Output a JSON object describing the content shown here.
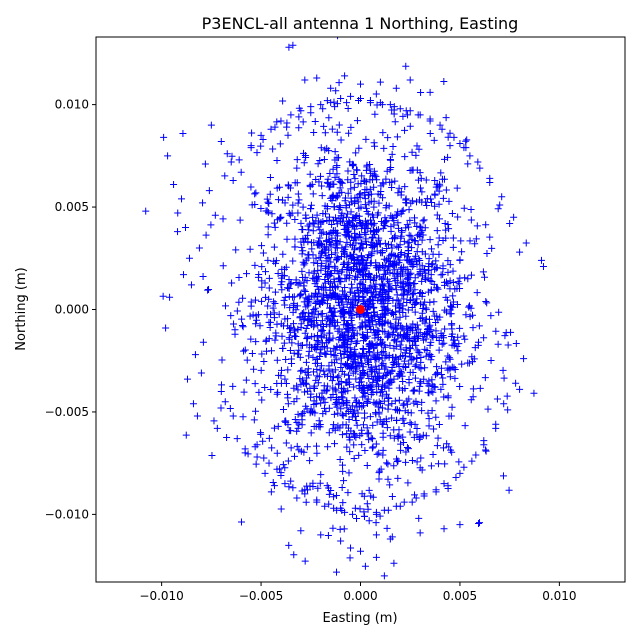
{
  "chart_data": {
    "type": "scatter",
    "title": "P3ENCL-all antenna 1 Northing, Easting",
    "xlabel": "Easting (m)",
    "ylabel": "Northing (m)",
    "xlim": [
      -0.0133,
      0.0133
    ],
    "ylim": [
      -0.0133,
      0.0133
    ],
    "xticks": [
      {
        "value": -0.01,
        "label": "−0.010"
      },
      {
        "value": -0.005,
        "label": "−0.005"
      },
      {
        "value": 0.0,
        "label": "0.000"
      },
      {
        "value": 0.005,
        "label": "0.005"
      },
      {
        "value": 0.01,
        "label": "0.010"
      }
    ],
    "yticks": [
      {
        "value": -0.01,
        "label": "−0.010"
      },
      {
        "value": -0.005,
        "label": "−0.005"
      },
      {
        "value": 0.0,
        "label": "0.000"
      },
      {
        "value": 0.005,
        "label": "0.005"
      },
      {
        "value": 0.01,
        "label": "0.010"
      }
    ],
    "grid": false,
    "legend": "none",
    "series": [
      {
        "marker": "plus",
        "color": "#0000ff",
        "dense_core": {
          "center": [
            0.0,
            0.0
          ],
          "semi_axes": [
            0.0055,
            0.0085
          ]
        },
        "x": [
          -0.0108,
          -0.0099,
          -0.0097,
          -0.0094,
          -0.009,
          -0.0088,
          -0.0086,
          -0.0085,
          -0.0083,
          -0.0082,
          -0.008,
          -0.0078,
          -0.0075,
          -0.0072,
          -0.007,
          -0.0068,
          -0.0065,
          -0.0062,
          -0.006,
          -0.0058,
          -0.0055,
          -0.0052,
          -0.005,
          -0.0048,
          -0.0045,
          -0.0042,
          -0.004,
          -0.0038,
          -0.0035,
          -0.0032,
          -0.003,
          -0.0028,
          -0.0025,
          -0.0022,
          -0.002,
          -0.0018,
          -0.0015,
          -0.0012,
          -0.001,
          -0.0008,
          -0.0005,
          -0.0002,
          0.0,
          0.0002,
          0.0005,
          0.0008,
          0.001,
          0.0012,
          0.0015,
          0.0018,
          0.002,
          0.0022,
          0.0025,
          0.0028,
          0.003,
          0.0032,
          0.0035,
          0.0038,
          0.004,
          0.0042,
          0.0045,
          0.0048,
          0.005,
          0.0052,
          0.0055,
          0.0058,
          0.006,
          0.0062,
          0.0065,
          0.0068,
          0.007,
          0.0072,
          0.0075,
          0.0078,
          0.008,
          0.0082,
          0.0091,
          0.0092,
          -0.0098,
          -0.0096,
          -0.0092,
          -0.0089,
          -0.0087,
          -0.0084,
          -0.0081,
          -0.0079,
          -0.0076,
          -0.0073,
          -0.007,
          -0.0067,
          -0.0064,
          -0.0061,
          -0.0058,
          -0.0055,
          -0.0052,
          -0.0049,
          -0.0046,
          -0.0043,
          -0.004,
          -0.0037,
          -0.0034,
          -0.0031,
          -0.0028,
          -0.0025,
          -0.0022,
          -0.0019,
          -0.0016,
          -0.0013,
          -0.001,
          -0.0007,
          -0.0004,
          -0.0001,
          0.0002,
          0.0005,
          0.0008,
          0.0011,
          0.0014,
          0.0017,
          0.002,
          0.0023,
          0.0026,
          0.0029,
          0.0032,
          0.0035,
          0.0038,
          0.0041,
          0.0044,
          0.0047,
          0.005,
          0.0053,
          0.0056,
          0.0059,
          0.0062,
          0.0065,
          0.0068,
          0.0071,
          0.0074,
          0.0077,
          0.008,
          -0.0036,
          -0.0034,
          -0.0028,
          -0.0022,
          -0.0015,
          -0.0008,
          0.0,
          0.001,
          0.0018,
          0.0025,
          0.0035,
          0.0045,
          0.0052,
          -0.002,
          -0.003,
          0.0008,
          0.0015,
          0.003,
          0.0042,
          0.005,
          -0.001,
          0.0,
          0.0008,
          0.0012,
          0.0016
        ],
        "y": [
          0.0048,
          0.0084,
          0.0075,
          0.0061,
          0.0054,
          0.004,
          0.0025,
          0.0012,
          -0.0022,
          -0.0052,
          -0.0031,
          0.0071,
          0.009,
          -0.0058,
          0.0082,
          -0.0045,
          0.0072,
          -0.0063,
          0.0067,
          -0.007,
          0.008,
          -0.0072,
          0.0085,
          -0.008,
          0.0088,
          -0.0078,
          0.0092,
          -0.0085,
          0.0095,
          -0.0092,
          0.0097,
          -0.0088,
          0.0099,
          -0.0094,
          0.01,
          -0.0096,
          0.0101,
          -0.0098,
          0.0103,
          -0.0099,
          0.0104,
          -0.0102,
          0.0103,
          -0.0101,
          0.0102,
          -0.0099,
          0.0101,
          -0.0098,
          0.01,
          -0.0096,
          0.0098,
          -0.0094,
          0.0097,
          -0.0092,
          0.0095,
          -0.009,
          0.0093,
          -0.0088,
          0.009,
          -0.0085,
          0.0086,
          -0.0082,
          0.0081,
          -0.0077,
          0.0075,
          -0.0071,
          0.0069,
          -0.0064,
          0.0062,
          -0.0056,
          0.0051,
          -0.0046,
          0.0042,
          -0.0036,
          0.0028,
          -0.0024,
          0.0024,
          0.0021,
          -0.0009,
          0.0006,
          0.0038,
          0.0017,
          -0.0034,
          -0.0046,
          0.003,
          -0.0016,
          0.0058,
          0.0046,
          -0.004,
          0.0076,
          -0.0052,
          0.0073,
          -0.0068,
          0.0079,
          -0.0066,
          0.0083,
          -0.0075,
          0.0089,
          -0.0081,
          0.0091,
          -0.0087,
          0.0094,
          -0.009,
          0.0096,
          -0.0093,
          0.0098,
          -0.0095,
          0.0099,
          -0.0097,
          0.0101,
          -0.01,
          0.0102,
          -0.0101,
          0.0101,
          -0.01,
          0.01,
          -0.0098,
          0.0099,
          -0.0096,
          0.0097,
          -0.0094,
          0.0095,
          -0.0091,
          0.0092,
          -0.0089,
          0.0088,
          -0.0086,
          0.0084,
          -0.008,
          0.0079,
          -0.0074,
          0.0072,
          -0.0066,
          0.0064,
          -0.0058,
          0.0055,
          -0.0049,
          0.0045,
          -0.0039,
          0.0128,
          0.0129,
          0.0112,
          0.0113,
          0.0108,
          0.0114,
          0.011,
          0.0111,
          0.0108,
          0.0112,
          0.0106,
          0.008,
          0.0079,
          -0.011,
          -0.0108,
          -0.011,
          -0.0112,
          -0.0109,
          -0.0107,
          -0.0105,
          -0.0113,
          -0.0118,
          -0.0121,
          -0.013,
          -0.0111
        ],
        "note_dense": true
      },
      {
        "marker": "circle",
        "color": "#ff0000",
        "x": [
          0.0
        ],
        "y": [
          0.0
        ]
      }
    ]
  }
}
